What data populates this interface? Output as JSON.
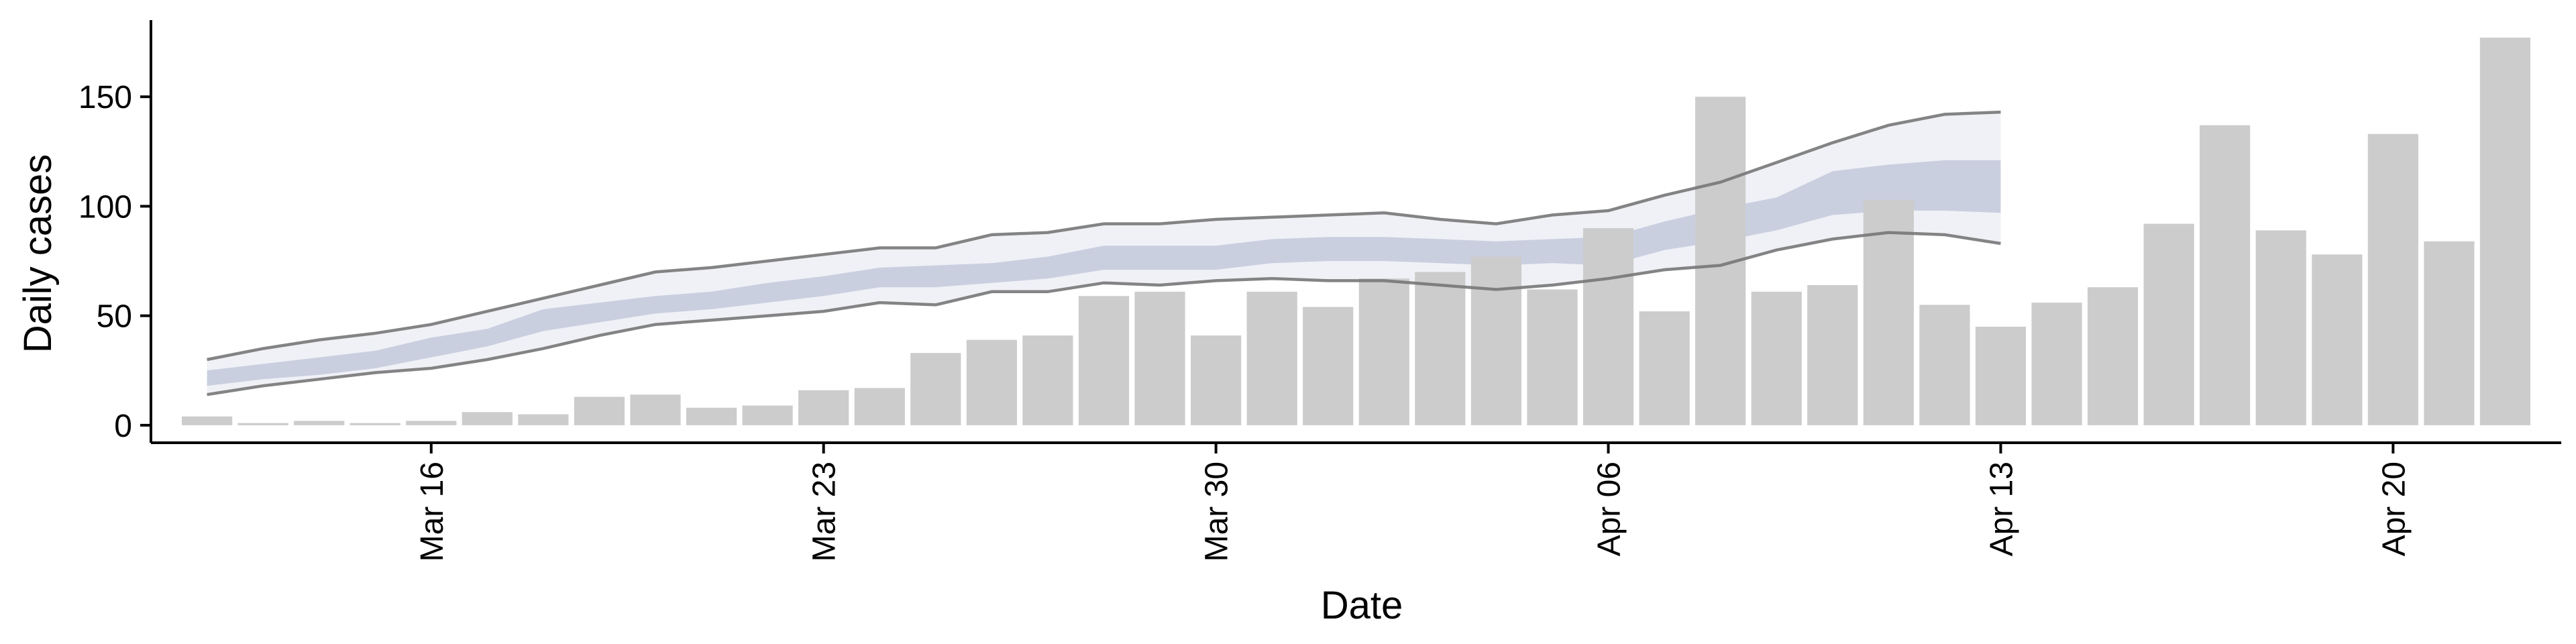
{
  "chart_data": {
    "type": "bar",
    "title": "",
    "xlabel": "Date",
    "ylabel": "Daily cases",
    "ylim": [
      -8,
      185
    ],
    "xlim": [
      "2020-03-11",
      "2020-04-23"
    ],
    "x_ticks": [
      {
        "date": "2020-03-16",
        "label": "Mar 16"
      },
      {
        "date": "2020-03-23",
        "label": "Mar 23"
      },
      {
        "date": "2020-03-30",
        "label": "Mar 30"
      },
      {
        "date": "2020-04-06",
        "label": "Apr 06"
      },
      {
        "date": "2020-04-13",
        "label": "Apr 13"
      },
      {
        "date": "2020-04-20",
        "label": "Apr 20"
      }
    ],
    "y_ticks": [
      0,
      50,
      100,
      150
    ],
    "grid": false,
    "bars": {
      "color": "#cccccc",
      "dates": [
        "2020-03-12",
        "2020-03-13",
        "2020-03-14",
        "2020-03-15",
        "2020-03-16",
        "2020-03-17",
        "2020-03-18",
        "2020-03-19",
        "2020-03-20",
        "2020-03-21",
        "2020-03-22",
        "2020-03-23",
        "2020-03-24",
        "2020-03-25",
        "2020-03-26",
        "2020-03-27",
        "2020-03-28",
        "2020-03-29",
        "2020-03-30",
        "2020-03-31",
        "2020-04-01",
        "2020-04-02",
        "2020-04-03",
        "2020-04-04",
        "2020-04-05",
        "2020-04-06",
        "2020-04-07",
        "2020-04-08",
        "2020-04-09",
        "2020-04-10",
        "2020-04-11",
        "2020-04-12",
        "2020-04-13",
        "2020-04-14",
        "2020-04-15",
        "2020-04-16",
        "2020-04-17",
        "2020-04-18",
        "2020-04-19",
        "2020-04-20",
        "2020-04-21",
        "2020-04-22"
      ],
      "values": [
        4,
        1,
        2,
        1,
        2,
        6,
        5,
        13,
        14,
        8,
        9,
        16,
        17,
        33,
        39,
        41,
        59,
        61,
        41,
        61,
        54,
        67,
        70,
        77,
        62,
        90,
        52,
        150,
        61,
        64,
        103,
        55,
        45,
        56,
        63,
        92,
        137,
        89,
        78,
        133,
        84,
        177
      ]
    },
    "estimate": {
      "dates": [
        "2020-03-12",
        "2020-03-13",
        "2020-03-14",
        "2020-03-15",
        "2020-03-16",
        "2020-03-17",
        "2020-03-18",
        "2020-03-19",
        "2020-03-20",
        "2020-03-21",
        "2020-03-22",
        "2020-03-23",
        "2020-03-24",
        "2020-03-25",
        "2020-03-26",
        "2020-03-27",
        "2020-03-28",
        "2020-03-29",
        "2020-03-30",
        "2020-03-31",
        "2020-04-01",
        "2020-04-02",
        "2020-04-03",
        "2020-04-04",
        "2020-04-05",
        "2020-04-06",
        "2020-04-07",
        "2020-04-08",
        "2020-04-09",
        "2020-04-10",
        "2020-04-11",
        "2020-04-12",
        "2020-04-13"
      ],
      "outer_upper": [
        30,
        35,
        39,
        42,
        46,
        52,
        58,
        64,
        70,
        72,
        75,
        78,
        81,
        81,
        87,
        88,
        92,
        92,
        94,
        95,
        96,
        97,
        94,
        92,
        96,
        98,
        105,
        111,
        120,
        129,
        137,
        142,
        143
      ],
      "outer_lower": [
        14,
        18,
        21,
        24,
        26,
        30,
        35,
        41,
        46,
        48,
        50,
        52,
        56,
        55,
        61,
        61,
        65,
        64,
        66,
        67,
        66,
        66,
        64,
        62,
        64,
        67,
        71,
        73,
        80,
        85,
        88,
        87,
        83
      ],
      "inner_upper": [
        25,
        28,
        31,
        34,
        40,
        44,
        53,
        56,
        59,
        61,
        65,
        68,
        72,
        73,
        74,
        77,
        82,
        82,
        82,
        85,
        86,
        86,
        85,
        84,
        85,
        86,
        93,
        99,
        104,
        116,
        119,
        121,
        121
      ],
      "inner_lower": [
        18,
        21,
        23,
        26,
        31,
        36,
        43,
        47,
        51,
        53,
        56,
        59,
        63,
        63,
        65,
        67,
        71,
        71,
        71,
        74,
        75,
        75,
        74,
        73,
        74,
        73,
        80,
        84,
        89,
        96,
        98,
        98,
        97
      ],
      "outer_line_color": "#777777",
      "outer_band_color": "#eceef4",
      "inner_band_color": "#c3c9dc"
    }
  }
}
